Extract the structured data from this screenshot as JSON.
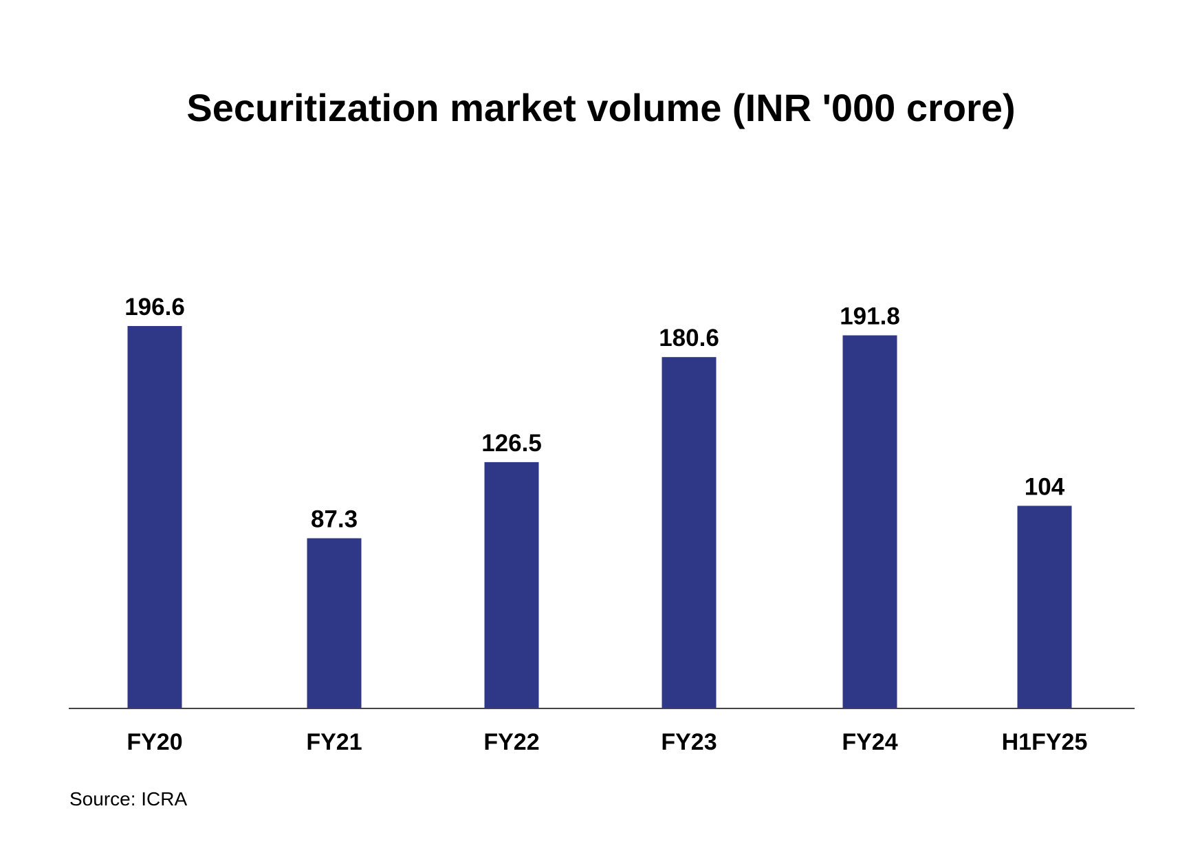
{
  "chart_data": {
    "type": "bar",
    "title": "Securitization market volume (INR '000 crore)",
    "categories": [
      "FY20",
      "FY21",
      "FY22",
      "FY23",
      "FY24",
      "H1FY25"
    ],
    "values": [
      196.6,
      87.3,
      126.5,
      180.6,
      191.8,
      104
    ],
    "value_labels": [
      "196.6",
      "87.3",
      "126.5",
      "180.6",
      "191.8",
      "104"
    ],
    "xlabel": "",
    "ylabel": "",
    "ylim": [
      0,
      196.6
    ],
    "grid": false,
    "y_axis_shown": false,
    "bar_color": "#2f3787"
  },
  "source": "Source: ICRA"
}
